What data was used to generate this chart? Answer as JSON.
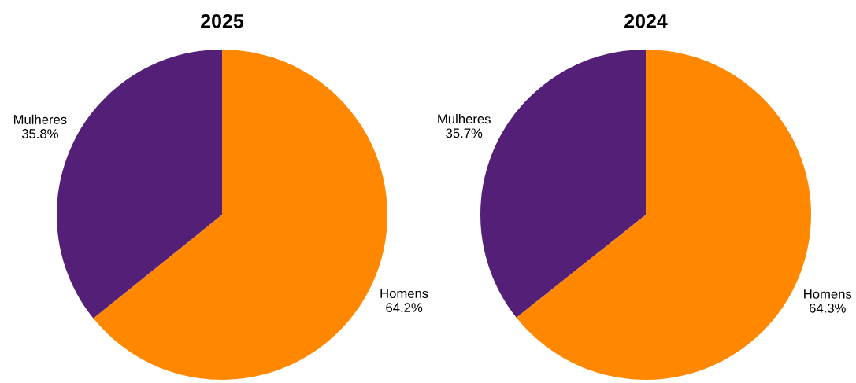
{
  "chart_data": [
    {
      "type": "pie",
      "title": "2025",
      "categories": [
        "Homens",
        "Mulheres"
      ],
      "values": [
        64.2,
        35.8
      ],
      "value_labels": [
        "64.2%",
        "35.8%"
      ],
      "colors": [
        "#ff8800",
        "#541f77"
      ]
    },
    {
      "type": "pie",
      "title": "2024",
      "categories": [
        "Homens",
        "Mulheres"
      ],
      "values": [
        64.3,
        35.7
      ],
      "value_labels": [
        "64.3%",
        "35.7%"
      ],
      "colors": [
        "#ff8800",
        "#541f77"
      ]
    }
  ]
}
